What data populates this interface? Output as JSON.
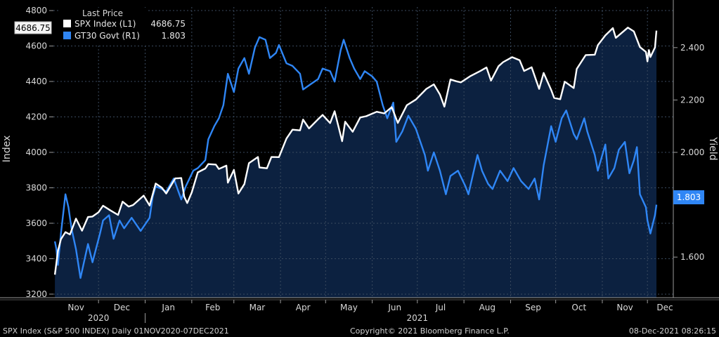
{
  "chart_data": {
    "type": "line",
    "title": "",
    "date_range": {
      "start": "2020-11-01",
      "end": "2021-12-07"
    },
    "x_ticks": [
      "Nov",
      "Dec",
      "Jan",
      "Feb",
      "Mar",
      "Apr",
      "May",
      "Jun",
      "Jul",
      "Aug",
      "Sep",
      "Oct",
      "Nov",
      "Dec"
    ],
    "year_labels": [
      "2020",
      "2021"
    ],
    "left_axis": {
      "label": "Index",
      "ylim": [
        3180,
        4820
      ],
      "ticks": [
        "3200",
        "3400",
        "3600",
        "3800",
        "4000",
        "4200",
        "4400",
        "4600",
        "4800"
      ]
    },
    "right_axis": {
      "label": "Yield",
      "ylim": [
        1.445,
        2.555
      ],
      "ticks": [
        "1.600",
        "2.000",
        "2.200",
        "2.400"
      ]
    },
    "legend": {
      "header": "Last Price",
      "position": "top-left",
      "entries": [
        {
          "name": "SPX Index  (L1)",
          "value": "4686.75",
          "color": "#ffffff"
        },
        {
          "name": "GT30 Govt  (R1)",
          "value": "1.803",
          "color": "#2f86f5"
        }
      ]
    },
    "last_value_labels": {
      "left": "4686.75",
      "right": "1.803"
    },
    "colors": {
      "background": "#000000",
      "area": "#0c2140",
      "spx": "#ffffff",
      "gt30": "#2f86f5",
      "grid": "#3a4a5e"
    },
    "grid": true,
    "series": [
      {
        "name": "SPX Index",
        "axis": "left",
        "points": [
          [
            "2020-11-02",
            3310
          ],
          [
            "2020-11-04",
            3443
          ],
          [
            "2020-11-06",
            3510
          ],
          [
            "2020-11-09",
            3550
          ],
          [
            "2020-11-12",
            3537
          ],
          [
            "2020-11-16",
            3626
          ],
          [
            "2020-11-20",
            3558
          ],
          [
            "2020-11-24",
            3635
          ],
          [
            "2020-11-27",
            3638
          ],
          [
            "2020-12-01",
            3662
          ],
          [
            "2020-12-04",
            3699
          ],
          [
            "2020-12-09",
            3672
          ],
          [
            "2020-12-14",
            3647
          ],
          [
            "2020-12-17",
            3722
          ],
          [
            "2020-12-21",
            3694
          ],
          [
            "2020-12-24",
            3703
          ],
          [
            "2020-12-31",
            3756
          ],
          [
            "2021-01-04",
            3700
          ],
          [
            "2021-01-08",
            3824
          ],
          [
            "2021-01-12",
            3801
          ],
          [
            "2021-01-15",
            3768
          ],
          [
            "2021-01-21",
            3853
          ],
          [
            "2021-01-25",
            3855
          ],
          [
            "2021-01-27",
            3750
          ],
          [
            "2021-01-29",
            3714
          ],
          [
            "2021-02-01",
            3774
          ],
          [
            "2021-02-05",
            3887
          ],
          [
            "2021-02-10",
            3909
          ],
          [
            "2021-02-12",
            3934
          ],
          [
            "2021-02-17",
            3931
          ],
          [
            "2021-02-19",
            3906
          ],
          [
            "2021-02-24",
            3925
          ],
          [
            "2021-02-25",
            3829
          ],
          [
            "2021-03-01",
            3901
          ],
          [
            "2021-03-04",
            3768
          ],
          [
            "2021-03-08",
            3821
          ],
          [
            "2021-03-11",
            3939
          ],
          [
            "2021-03-17",
            3974
          ],
          [
            "2021-03-18",
            3915
          ],
          [
            "2021-03-23",
            3910
          ],
          [
            "2021-03-26",
            3974
          ],
          [
            "2021-03-31",
            3973
          ],
          [
            "2021-04-05",
            4078
          ],
          [
            "2021-04-09",
            4128
          ],
          [
            "2021-04-14",
            4124
          ],
          [
            "2021-04-16",
            4185
          ],
          [
            "2021-04-20",
            4135
          ],
          [
            "2021-04-26",
            4187
          ],
          [
            "2021-04-29",
            4211
          ],
          [
            "2021-05-04",
            4165
          ],
          [
            "2021-05-07",
            4232
          ],
          [
            "2021-05-12",
            4063
          ],
          [
            "2021-05-14",
            4173
          ],
          [
            "2021-05-19",
            4116
          ],
          [
            "2021-05-24",
            4197
          ],
          [
            "2021-05-28",
            4204
          ],
          [
            "2021-06-04",
            4229
          ],
          [
            "2021-06-09",
            4220
          ],
          [
            "2021-06-14",
            4255
          ],
          [
            "2021-06-18",
            4166
          ],
          [
            "2021-06-24",
            4266
          ],
          [
            "2021-06-30",
            4298
          ],
          [
            "2021-07-07",
            4358
          ],
          [
            "2021-07-12",
            4384
          ],
          [
            "2021-07-16",
            4327
          ],
          [
            "2021-07-19",
            4258
          ],
          [
            "2021-07-23",
            4411
          ],
          [
            "2021-07-27",
            4401
          ],
          [
            "2021-07-30",
            4395
          ],
          [
            "2021-08-05",
            4429
          ],
          [
            "2021-08-12",
            4460
          ],
          [
            "2021-08-16",
            4479
          ],
          [
            "2021-08-19",
            4405
          ],
          [
            "2021-08-24",
            4486
          ],
          [
            "2021-08-27",
            4509
          ],
          [
            "2021-09-02",
            4537
          ],
          [
            "2021-09-07",
            4520
          ],
          [
            "2021-09-10",
            4459
          ],
          [
            "2021-09-15",
            4480
          ],
          [
            "2021-09-20",
            4358
          ],
          [
            "2021-09-23",
            4448
          ],
          [
            "2021-09-28",
            4352
          ],
          [
            "2021-09-30",
            4307
          ],
          [
            "2021-10-04",
            4300
          ],
          [
            "2021-10-07",
            4399
          ],
          [
            "2021-10-13",
            4363
          ],
          [
            "2021-10-15",
            4471
          ],
          [
            "2021-10-21",
            4549
          ],
          [
            "2021-10-27",
            4551
          ],
          [
            "2021-10-29",
            4605
          ],
          [
            "2021-11-03",
            4660
          ],
          [
            "2021-11-08",
            4701
          ],
          [
            "2021-11-10",
            4646
          ],
          [
            "2021-11-15",
            4682
          ],
          [
            "2021-11-18",
            4704
          ],
          [
            "2021-11-22",
            4682
          ],
          [
            "2021-11-26",
            4594
          ],
          [
            "2021-11-30",
            4567
          ],
          [
            "2021-12-01",
            4513
          ],
          [
            "2021-12-02",
            4577
          ],
          [
            "2021-12-03",
            4538
          ],
          [
            "2021-12-06",
            4592
          ],
          [
            "2021-12-07",
            4686.75
          ]
        ]
      },
      {
        "name": "GT30 Govt",
        "axis": "right",
        "points": [
          [
            "2020-11-02",
            1.66
          ],
          [
            "2020-11-03",
            1.63
          ],
          [
            "2020-11-04",
            1.57
          ],
          [
            "2020-11-06",
            1.69
          ],
          [
            "2020-11-09",
            1.84
          ],
          [
            "2020-11-11",
            1.79
          ],
          [
            "2020-11-13",
            1.71
          ],
          [
            "2020-11-16",
            1.63
          ],
          [
            "2020-11-19",
            1.52
          ],
          [
            "2020-11-24",
            1.65
          ],
          [
            "2020-11-27",
            1.58
          ],
          [
            "2020-12-02",
            1.69
          ],
          [
            "2020-12-04",
            1.74
          ],
          [
            "2020-12-08",
            1.76
          ],
          [
            "2020-12-11",
            1.67
          ],
          [
            "2020-12-15",
            1.74
          ],
          [
            "2020-12-18",
            1.71
          ],
          [
            "2020-12-23",
            1.75
          ],
          [
            "2020-12-29",
            1.7
          ],
          [
            "2021-01-04",
            1.75
          ],
          [
            "2021-01-06",
            1.83
          ],
          [
            "2021-01-08",
            1.87
          ],
          [
            "2021-01-12",
            1.86
          ],
          [
            "2021-01-15",
            1.85
          ],
          [
            "2021-01-20",
            1.9
          ],
          [
            "2021-01-25",
            1.82
          ],
          [
            "2021-01-28",
            1.87
          ],
          [
            "2021-02-02",
            1.93
          ],
          [
            "2021-02-05",
            1.94
          ],
          [
            "2021-02-10",
            1.97
          ],
          [
            "2021-02-12",
            2.05
          ],
          [
            "2021-02-16",
            2.1
          ],
          [
            "2021-02-19",
            2.13
          ],
          [
            "2021-02-22",
            2.18
          ],
          [
            "2021-02-25",
            2.3
          ],
          [
            "2021-03-01",
            2.23
          ],
          [
            "2021-03-04",
            2.32
          ],
          [
            "2021-03-08",
            2.36
          ],
          [
            "2021-03-11",
            2.3
          ],
          [
            "2021-03-15",
            2.4
          ],
          [
            "2021-03-18",
            2.44
          ],
          [
            "2021-03-22",
            2.43
          ],
          [
            "2021-03-25",
            2.36
          ],
          [
            "2021-03-29",
            2.38
          ],
          [
            "2021-03-31",
            2.41
          ],
          [
            "2021-04-05",
            2.34
          ],
          [
            "2021-04-09",
            2.33
          ],
          [
            "2021-04-14",
            2.3
          ],
          [
            "2021-04-16",
            2.24
          ],
          [
            "2021-04-21",
            2.26
          ],
          [
            "2021-04-26",
            2.28
          ],
          [
            "2021-04-29",
            2.32
          ],
          [
            "2021-05-04",
            2.31
          ],
          [
            "2021-05-07",
            2.27
          ],
          [
            "2021-05-11",
            2.39
          ],
          [
            "2021-05-13",
            2.43
          ],
          [
            "2021-05-17",
            2.36
          ],
          [
            "2021-05-20",
            2.32
          ],
          [
            "2021-05-24",
            2.28
          ],
          [
            "2021-05-27",
            2.31
          ],
          [
            "2021-06-01",
            2.29
          ],
          [
            "2021-06-04",
            2.27
          ],
          [
            "2021-06-08",
            2.18
          ],
          [
            "2021-06-11",
            2.13
          ],
          [
            "2021-06-15",
            2.19
          ],
          [
            "2021-06-17",
            2.04
          ],
          [
            "2021-06-21",
            2.08
          ],
          [
            "2021-06-25",
            2.14
          ],
          [
            "2021-06-30",
            2.09
          ],
          [
            "2021-07-06",
            1.99
          ],
          [
            "2021-07-08",
            1.93
          ],
          [
            "2021-07-12",
            2.0
          ],
          [
            "2021-07-16",
            1.93
          ],
          [
            "2021-07-20",
            1.84
          ],
          [
            "2021-07-23",
            1.91
          ],
          [
            "2021-07-28",
            1.93
          ],
          [
            "2021-08-02",
            1.87
          ],
          [
            "2021-08-04",
            1.84
          ],
          [
            "2021-08-10",
            1.99
          ],
          [
            "2021-08-13",
            1.93
          ],
          [
            "2021-08-17",
            1.88
          ],
          [
            "2021-08-20",
            1.86
          ],
          [
            "2021-08-25",
            1.93
          ],
          [
            "2021-08-30",
            1.89
          ],
          [
            "2021-09-03",
            1.94
          ],
          [
            "2021-09-08",
            1.89
          ],
          [
            "2021-09-13",
            1.86
          ],
          [
            "2021-09-17",
            1.9
          ],
          [
            "2021-09-20",
            1.82
          ],
          [
            "2021-09-23",
            1.95
          ],
          [
            "2021-09-28",
            2.1
          ],
          [
            "2021-10-01",
            2.04
          ],
          [
            "2021-10-05",
            2.13
          ],
          [
            "2021-10-08",
            2.16
          ],
          [
            "2021-10-13",
            2.07
          ],
          [
            "2021-10-15",
            2.05
          ],
          [
            "2021-10-20",
            2.13
          ],
          [
            "2021-10-22",
            2.08
          ],
          [
            "2021-10-27",
            1.99
          ],
          [
            "2021-10-29",
            1.93
          ],
          [
            "2021-11-03",
            2.03
          ],
          [
            "2021-11-05",
            1.9
          ],
          [
            "2021-11-09",
            1.94
          ],
          [
            "2021-11-12",
            2.01
          ],
          [
            "2021-11-16",
            2.04
          ],
          [
            "2021-11-19",
            1.92
          ],
          [
            "2021-11-22",
            1.97
          ],
          [
            "2021-11-24",
            2.02
          ],
          [
            "2021-11-26",
            1.84
          ],
          [
            "2021-11-30",
            1.79
          ],
          [
            "2021-12-01",
            1.74
          ],
          [
            "2021-12-03",
            1.69
          ],
          [
            "2021-12-06",
            1.76
          ],
          [
            "2021-12-07",
            1.8
          ]
        ]
      }
    ]
  },
  "footer": {
    "left": "SPX Index (S&P 500 INDEX)  Daily 01NOV2020-07DEC2021",
    "center": "Copyright© 2021 Bloomberg Finance L.P.",
    "right": "08-Dec-2021 08:26:15"
  }
}
